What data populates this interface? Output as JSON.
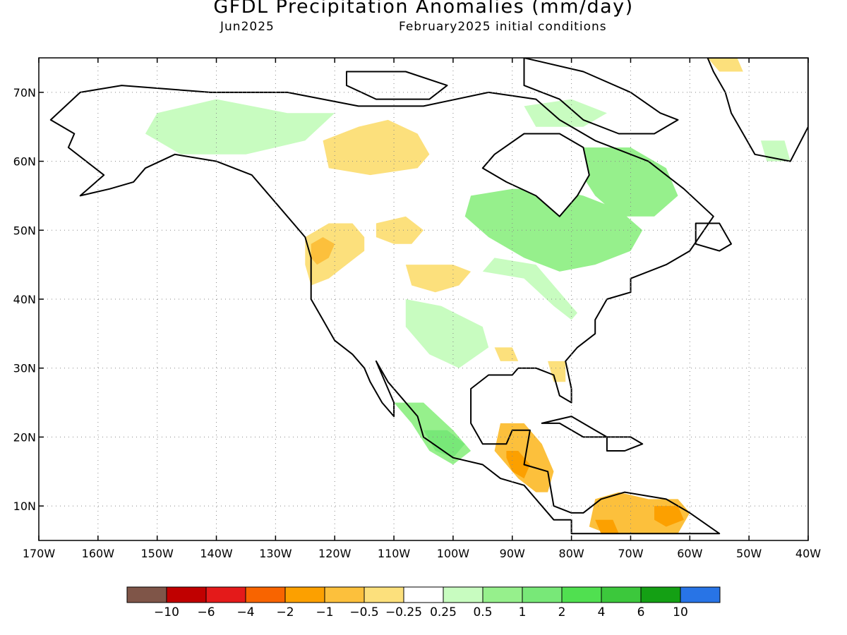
{
  "title": "GFDL Precipitation Anomalies (mm/day)",
  "subtitle_left": "Jun2025",
  "subtitle_right": "February2025 initial conditions",
  "map": {
    "lon_range": [
      -170,
      -40
    ],
    "lat_range": [
      5,
      75
    ],
    "lat_ticks": [
      {
        "value": 70,
        "label": "70N"
      },
      {
        "value": 60,
        "label": "60N"
      },
      {
        "value": 50,
        "label": "50N"
      },
      {
        "value": 40,
        "label": "40N"
      },
      {
        "value": 30,
        "label": "30N"
      },
      {
        "value": 20,
        "label": "20N"
      },
      {
        "value": 10,
        "label": "10N"
      }
    ],
    "lon_ticks": [
      {
        "value": -170,
        "label": "170W"
      },
      {
        "value": -160,
        "label": "160W"
      },
      {
        "value": -150,
        "label": "150W"
      },
      {
        "value": -140,
        "label": "140W"
      },
      {
        "value": -130,
        "label": "130W"
      },
      {
        "value": -120,
        "label": "120W"
      },
      {
        "value": -110,
        "label": "110W"
      },
      {
        "value": -100,
        "label": "100W"
      },
      {
        "value": -90,
        "label": "90W"
      },
      {
        "value": -80,
        "label": "80W"
      },
      {
        "value": -70,
        "label": "70W"
      },
      {
        "value": -60,
        "label": "60W"
      },
      {
        "value": -50,
        "label": "50W"
      },
      {
        "value": -40,
        "label": "40W"
      }
    ],
    "grid": "dotted"
  },
  "colorbar": {
    "colors": [
      "#7f5548",
      "#c00000",
      "#e41a1a",
      "#f86400",
      "#fca000",
      "#fcc03c",
      "#fce07c",
      "#ffffff",
      "#c8fcc0",
      "#96f08c",
      "#78e878",
      "#50e050",
      "#3cc83c",
      "#14a014",
      "#2874e6"
    ],
    "labels": [
      "−10",
      "−6",
      "−4",
      "−2",
      "−1",
      "−0.5",
      "−0.25",
      "0.25",
      "0.5",
      "1",
      "2",
      "4",
      "6",
      "10"
    ]
  },
  "anomalies": [
    {
      "level": "-1",
      "color": "#fcc03c",
      "poly": [
        [
          -120,
          62
        ],
        [
          -117,
          63
        ],
        [
          -112,
          63
        ],
        [
          -108,
          61
        ],
        [
          -106,
          60
        ],
        [
          -110,
          59
        ],
        [
          -116,
          59
        ],
        [
          -120,
          60
        ]
      ]
    },
    {
      "level": "-0.5",
      "color": "#fce07c",
      "poly": [
        [
          -122,
          63
        ],
        [
          -116,
          65
        ],
        [
          -111,
          66
        ],
        [
          -106,
          64
        ],
        [
          -104,
          61
        ],
        [
          -106,
          59
        ],
        [
          -114,
          58
        ],
        [
          -121,
          59
        ]
      ]
    },
    {
      "level": "-0.5",
      "color": "#fce07c",
      "poly": [
        [
          -125,
          49
        ],
        [
          -121,
          51
        ],
        [
          -117,
          51
        ],
        [
          -115,
          49
        ],
        [
          -115,
          47
        ],
        [
          -118,
          45
        ],
        [
          -121,
          43
        ],
        [
          -124,
          42
        ],
        [
          -125,
          45
        ]
      ]
    },
    {
      "level": "-1",
      "color": "#fcc03c",
      "poly": [
        [
          -124,
          48
        ],
        [
          -122,
          49
        ],
        [
          -120,
          48
        ],
        [
          -121,
          46
        ],
        [
          -123,
          45
        ],
        [
          -124,
          46
        ]
      ]
    },
    {
      "level": "-0.5",
      "color": "#fce07c",
      "poly": [
        [
          -108,
          45
        ],
        [
          -104,
          45
        ],
        [
          -100,
          45
        ],
        [
          -97,
          44
        ],
        [
          -99,
          42
        ],
        [
          -103,
          41
        ],
        [
          -107,
          42
        ]
      ]
    },
    {
      "level": "-0.5",
      "color": "#fce07c",
      "poly": [
        [
          -113,
          51
        ],
        [
          -108,
          52
        ],
        [
          -105,
          50
        ],
        [
          -107,
          48
        ],
        [
          -110,
          48
        ],
        [
          -113,
          49
        ]
      ]
    },
    {
      "level": "-1",
      "color": "#fcc03c",
      "poly": [
        [
          -92,
          22
        ],
        [
          -88,
          22
        ],
        [
          -85,
          19
        ],
        [
          -83,
          15
        ],
        [
          -84,
          12
        ],
        [
          -86,
          12
        ],
        [
          -89,
          14
        ],
        [
          -91,
          16
        ],
        [
          -93,
          18
        ]
      ]
    },
    {
      "level": "-2",
      "color": "#fca000",
      "poly": [
        [
          -91,
          18
        ],
        [
          -89,
          18
        ],
        [
          -87,
          16
        ],
        [
          -88,
          14
        ],
        [
          -90,
          15
        ],
        [
          -91,
          17
        ]
      ]
    },
    {
      "level": "-1",
      "color": "#fcc03c",
      "poly": [
        [
          -76,
          11
        ],
        [
          -72,
          12
        ],
        [
          -67,
          11
        ],
        [
          -62,
          11
        ],
        [
          -60,
          9
        ],
        [
          -62,
          6
        ],
        [
          -68,
          6
        ],
        [
          -74,
          6
        ],
        [
          -77,
          7
        ]
      ]
    },
    {
      "level": "-2",
      "color": "#fca000",
      "poly": [
        [
          -76,
          8
        ],
        [
          -73,
          8
        ],
        [
          -72,
          6
        ],
        [
          -75,
          6
        ]
      ]
    },
    {
      "level": "-2",
      "color": "#fca000",
      "poly": [
        [
          -66,
          10
        ],
        [
          -62,
          10
        ],
        [
          -61,
          8
        ],
        [
          -64,
          7
        ],
        [
          -66,
          8
        ]
      ]
    },
    {
      "level": "-0.5",
      "color": "#fce07c",
      "poly": [
        [
          -84,
          31
        ],
        [
          -81,
          31
        ],
        [
          -81,
          28
        ],
        [
          -83,
          28
        ]
      ]
    },
    {
      "level": "-0.5",
      "color": "#fce07c",
      "poly": [
        [
          -93,
          33
        ],
        [
          -90,
          33
        ],
        [
          -89,
          31
        ],
        [
          -92,
          31
        ]
      ]
    },
    {
      "level": "-0.5",
      "color": "#fce07c",
      "poly": [
        [
          -57,
          75
        ],
        [
          -52,
          75
        ],
        [
          -51,
          73
        ],
        [
          -55,
          73
        ]
      ]
    },
    {
      "level": "0.5",
      "color": "#96f08c",
      "poly": [
        [
          -97,
          55
        ],
        [
          -90,
          56
        ],
        [
          -83,
          56
        ],
        [
          -78,
          55
        ],
        [
          -72,
          53
        ],
        [
          -68,
          50
        ],
        [
          -70,
          47
        ],
        [
          -76,
          45
        ],
        [
          -82,
          44
        ],
        [
          -88,
          46
        ],
        [
          -94,
          49
        ],
        [
          -98,
          52
        ]
      ]
    },
    {
      "level": "0.5",
      "color": "#96f08c",
      "poly": [
        [
          -78,
          62
        ],
        [
          -70,
          62
        ],
        [
          -64,
          59
        ],
        [
          -62,
          55
        ],
        [
          -66,
          52
        ],
        [
          -72,
          52
        ],
        [
          -76,
          55
        ],
        [
          -79,
          59
        ]
      ]
    },
    {
      "level": "0.5",
      "color": "#96f08c",
      "poly": [
        [
          -110,
          25
        ],
        [
          -105,
          25
        ],
        [
          -100,
          21
        ],
        [
          -97,
          18
        ],
        [
          -100,
          16
        ],
        [
          -104,
          18
        ],
        [
          -107,
          22
        ]
      ]
    },
    {
      "level": "1",
      "color": "#78e878",
      "poly": [
        [
          -105,
          21
        ],
        [
          -101,
          21
        ],
        [
          -98,
          19
        ],
        [
          -100,
          17
        ],
        [
          -103,
          18
        ]
      ]
    },
    {
      "level": "0.25",
      "color": "#c8fcc0",
      "poly": [
        [
          -150,
          67
        ],
        [
          -140,
          69
        ],
        [
          -128,
          67
        ],
        [
          -120,
          67
        ],
        [
          -125,
          63
        ],
        [
          -135,
          61
        ],
        [
          -146,
          61
        ],
        [
          -152,
          64
        ]
      ]
    },
    {
      "level": "0.25",
      "color": "#c8fcc0",
      "poly": [
        [
          -95,
          44
        ],
        [
          -88,
          43
        ],
        [
          -83,
          39
        ],
        [
          -80,
          37
        ],
        [
          -79,
          38
        ],
        [
          -82,
          41
        ],
        [
          -86,
          45
        ],
        [
          -93,
          46
        ]
      ]
    },
    {
      "level": "0.25",
      "color": "#c8fcc0",
      "poly": [
        [
          -108,
          40
        ],
        [
          -102,
          39
        ],
        [
          -95,
          36
        ],
        [
          -94,
          33
        ],
        [
          -99,
          30
        ],
        [
          -104,
          32
        ],
        [
          -108,
          36
        ]
      ]
    },
    {
      "level": "0.25",
      "color": "#c8fcc0",
      "poly": [
        [
          -88,
          68
        ],
        [
          -80,
          69
        ],
        [
          -74,
          67
        ],
        [
          -78,
          65
        ],
        [
          -86,
          65
        ]
      ]
    },
    {
      "level": "0.25",
      "color": "#c8fcc0",
      "poly": [
        [
          -48,
          63
        ],
        [
          -44,
          63
        ],
        [
          -43,
          60
        ],
        [
          -47,
          60
        ]
      ]
    }
  ],
  "land": [
    {
      "name": "North America",
      "poly": [
        [
          -168,
          66
        ],
        [
          -163,
          70
        ],
        [
          -156,
          71
        ],
        [
          -141,
          70
        ],
        [
          -128,
          70
        ],
        [
          -116,
          68
        ],
        [
          -105,
          68
        ],
        [
          -94,
          70
        ],
        [
          -86,
          69
        ],
        [
          -82,
          66
        ],
        [
          -76,
          63
        ],
        [
          -67,
          60
        ],
        [
          -61,
          56
        ],
        [
          -56,
          52
        ],
        [
          -60,
          47
        ],
        [
          -64,
          45
        ],
        [
          -70,
          43
        ],
        [
          -70,
          41
        ],
        [
          -74,
          40
        ],
        [
          -76,
          37
        ],
        [
          -76,
          35
        ],
        [
          -79,
          33
        ],
        [
          -81,
          31
        ],
        [
          -80,
          27
        ],
        [
          -80,
          25
        ],
        [
          -82,
          26
        ],
        [
          -83,
          29
        ],
        [
          -86,
          30
        ],
        [
          -89,
          30
        ],
        [
          -90,
          29
        ],
        [
          -94,
          29
        ],
        [
          -97,
          27
        ],
        [
          -97,
          22
        ],
        [
          -95,
          19
        ],
        [
          -91,
          19
        ],
        [
          -90,
          21
        ],
        [
          -87,
          21
        ],
        [
          -88,
          16
        ],
        [
          -84,
          15
        ],
        [
          -83,
          10
        ],
        [
          -80,
          9
        ],
        [
          -78,
          9
        ],
        [
          -75,
          11
        ],
        [
          -71,
          12
        ],
        [
          -64,
          11
        ],
        [
          -60,
          9
        ],
        [
          -55,
          6
        ],
        [
          -80,
          6
        ],
        [
          -80,
          8
        ],
        [
          -83,
          8
        ],
        [
          -86,
          11
        ],
        [
          -88,
          13
        ],
        [
          -92,
          14
        ],
        [
          -95,
          16
        ],
        [
          -100,
          17
        ],
        [
          -105,
          20
        ],
        [
          -106,
          23
        ],
        [
          -109,
          26
        ],
        [
          -111,
          28
        ],
        [
          -113,
          31
        ],
        [
          -112,
          29
        ],
        [
          -110,
          25
        ],
        [
          -110,
          23
        ],
        [
          -112,
          25
        ],
        [
          -114,
          28
        ],
        [
          -115,
          30
        ],
        [
          -117,
          32
        ],
        [
          -120,
          34
        ],
        [
          -122,
          37
        ],
        [
          -124,
          40
        ],
        [
          -124,
          46
        ],
        [
          -125,
          49
        ],
        [
          -130,
          54
        ],
        [
          -134,
          58
        ],
        [
          -140,
          60
        ],
        [
          -147,
          61
        ],
        [
          -152,
          59
        ],
        [
          -154,
          57
        ],
        [
          -158,
          56
        ],
        [
          -163,
          55
        ],
        [
          -159,
          58
        ],
        [
          -162,
          60
        ],
        [
          -165,
          62
        ],
        [
          -164,
          64
        ]
      ]
    },
    {
      "name": "Greenland",
      "poly": [
        [
          -57,
          75
        ],
        [
          -40,
          75
        ],
        [
          -40,
          65
        ],
        [
          -43,
          60
        ],
        [
          -49,
          61
        ],
        [
          -51,
          64
        ],
        [
          -53,
          67
        ],
        [
          -54,
          70
        ],
        [
          -56,
          73
        ]
      ]
    },
    {
      "name": "Baffin Island",
      "poly": [
        [
          -88,
          75
        ],
        [
          -78,
          73
        ],
        [
          -70,
          70
        ],
        [
          -65,
          67
        ],
        [
          -62,
          66
        ],
        [
          -66,
          64
        ],
        [
          -72,
          64
        ],
        [
          -78,
          66
        ],
        [
          -82,
          69
        ],
        [
          -88,
          71
        ]
      ]
    },
    {
      "name": "Victoria Island",
      "poly": [
        [
          -118,
          73
        ],
        [
          -108,
          73
        ],
        [
          -101,
          71
        ],
        [
          -104,
          69
        ],
        [
          -113,
          69
        ],
        [
          -118,
          71
        ]
      ]
    },
    {
      "name": "Newfoundland",
      "poly": [
        [
          -59,
          51
        ],
        [
          -55,
          51
        ],
        [
          -53,
          48
        ],
        [
          -55,
          47
        ],
        [
          -59,
          48
        ]
      ]
    },
    {
      "name": "Cuba",
      "poly": [
        [
          -85,
          22
        ],
        [
          -80,
          23
        ],
        [
          -76,
          21
        ],
        [
          -74,
          20
        ],
        [
          -78,
          20
        ],
        [
          -82,
          22
        ]
      ]
    },
    {
      "name": "Hispaniola",
      "poly": [
        [
          -74,
          20
        ],
        [
          -70,
          20
        ],
        [
          -68,
          19
        ],
        [
          -71,
          18
        ],
        [
          -74,
          18
        ]
      ]
    }
  ],
  "lakes": [
    {
      "name": "Hudson Bay",
      "poly": [
        [
          -95,
          59
        ],
        [
          -93,
          61
        ],
        [
          -88,
          64
        ],
        [
          -82,
          64
        ],
        [
          -78,
          62
        ],
        [
          -77,
          58
        ],
        [
          -79,
          55
        ],
        [
          -82,
          52
        ],
        [
          -86,
          55
        ],
        [
          -91,
          57
        ]
      ]
    }
  ]
}
